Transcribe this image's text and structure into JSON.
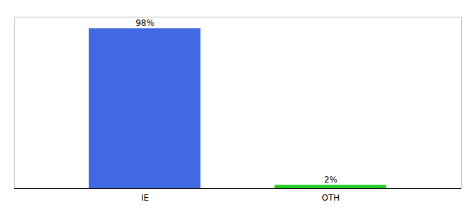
{
  "chart_data": {
    "type": "bar",
    "categories": [
      "IE",
      "OTH"
    ],
    "values": [
      98,
      2
    ],
    "value_labels": [
      "98%",
      "2%"
    ],
    "colors": [
      "#4169e1",
      "#22cc22"
    ],
    "ylim": [
      0,
      105
    ],
    "data_labels": true,
    "tick_labels": "x"
  }
}
